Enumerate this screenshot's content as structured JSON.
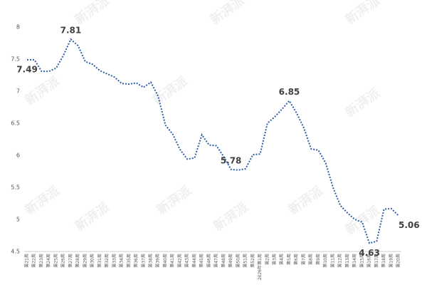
{
  "chart_data": {
    "type": "line",
    "watermark": "新湃派",
    "categories": [
      "第21周",
      "第22周",
      "第23周",
      "第24周",
      "第25周",
      "第26周",
      "第27周",
      "第28周",
      "第29周",
      "第30周",
      "第31周",
      "第32周",
      "第33周",
      "第34周",
      "第35周",
      "第36周",
      "第37周",
      "第38周",
      "第39周",
      "第40周",
      "第41周",
      "第42周",
      "第43周",
      "第44周",
      "第45周",
      "第46周",
      "第47周",
      "第48周",
      "第49周",
      "第50周",
      "第51周",
      "第52周",
      "2026年第1周",
      "第2周",
      "第3周",
      "第4周",
      "第5周",
      "第6周",
      "第7周",
      "第8周",
      "第9周",
      "第10周",
      "第11周",
      "第12周",
      "第13周",
      "第14周",
      "第15周",
      "第16周",
      "第17周",
      "第18周",
      "第19周",
      "第20周"
    ],
    "series": [
      {
        "color": "#2e5fa8",
        "values": [
          7.49,
          7.49,
          7.31,
          7.31,
          7.36,
          7.56,
          7.81,
          7.71,
          7.46,
          7.42,
          7.32,
          7.27,
          7.22,
          7.12,
          7.11,
          7.13,
          7.06,
          7.14,
          6.92,
          6.47,
          6.33,
          6.09,
          5.94,
          5.96,
          6.32,
          6.16,
          6.15,
          5.98,
          5.78,
          5.77,
          5.79,
          6.01,
          6.02,
          6.5,
          6.6,
          6.72,
          6.85,
          6.66,
          6.43,
          6.1,
          6.08,
          5.88,
          5.5,
          5.22,
          5.1,
          5.0,
          4.96,
          4.63,
          4.66,
          5.16,
          5.17,
          5.06
        ],
        "labeled_points": [
          0,
          6,
          28,
          36,
          47,
          51
        ]
      }
    ],
    "ylim": [
      4.5,
      8
    ],
    "yticks": [
      4.5,
      5,
      5.5,
      6,
      6.5,
      7,
      7.5,
      8
    ],
    "grid": false
  }
}
